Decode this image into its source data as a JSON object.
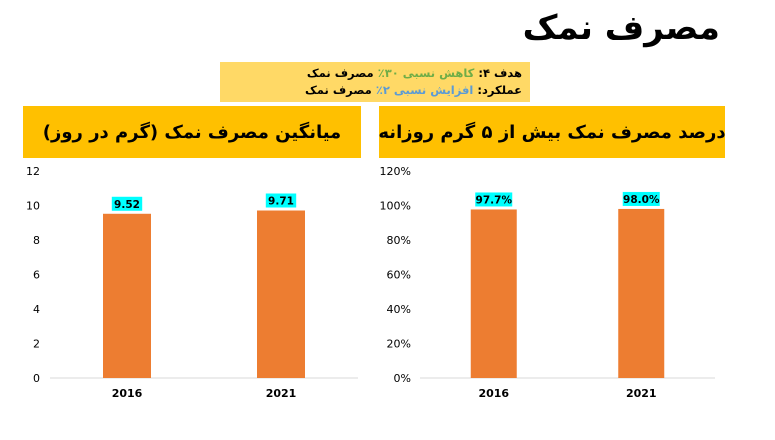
{
  "slide": {
    "title": "مصرف نمک"
  },
  "goal_box": {
    "goal_prefix": "هدف ۴:",
    "goal_highlight": "کاهش نسبی ۳۰٪",
    "goal_suffix": "مصرف نمک",
    "perf_prefix": "عملکرد:",
    "perf_highlight": "افزایش نسبی ۲٪",
    "perf_suffix": "مصرف نمک"
  },
  "colors": {
    "bar": "#ed7d31",
    "header": "#ffc000",
    "goal_box": "#ffd966",
    "label_bg": "#00ffff",
    "goal_text": "#70ad47",
    "perf_text": "#5b9bd5"
  },
  "chart_data": [
    {
      "type": "bar",
      "title": "میانگین مصرف نمک (گرم در روز)",
      "categories": [
        "2016",
        "2021"
      ],
      "values": [
        9.52,
        9.71
      ],
      "data_labels": [
        "9.52",
        "9.71"
      ],
      "ylim": [
        0,
        12
      ],
      "yticks": [
        "0",
        "2",
        "4",
        "6",
        "8",
        "10",
        "12"
      ],
      "grid": false
    },
    {
      "type": "bar",
      "title": "درصد مصرف نمک بیش از ۵ گرم روزانه",
      "categories": [
        "2016",
        "2021"
      ],
      "values": [
        97.7,
        98.0
      ],
      "data_labels": [
        "97.7%",
        "98.0%"
      ],
      "ylim": [
        0,
        120
      ],
      "yticks": [
        "0%",
        "20%",
        "40%",
        "60%",
        "80%",
        "100%",
        "120%"
      ],
      "grid": false
    }
  ]
}
